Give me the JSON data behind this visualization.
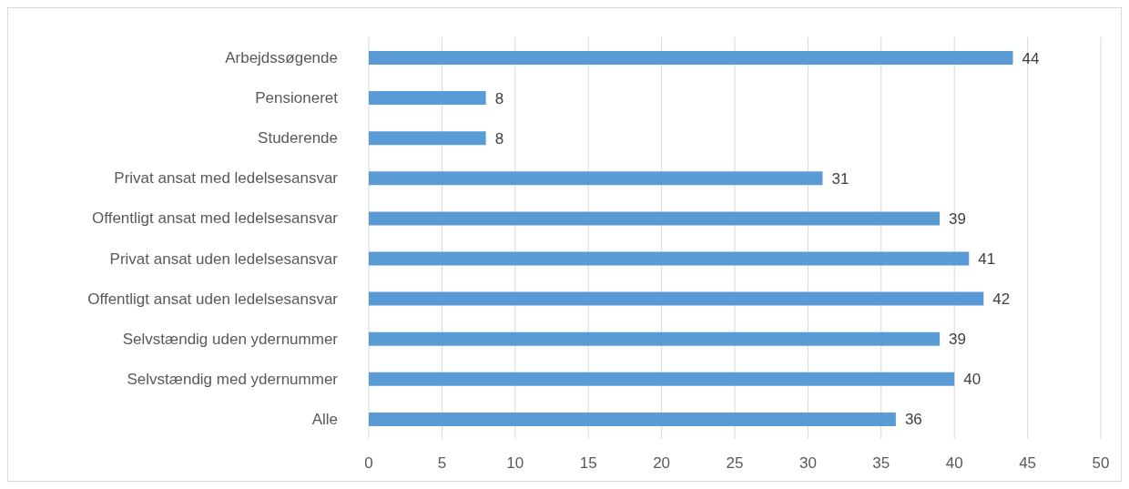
{
  "chart_data": {
    "type": "bar",
    "orientation": "horizontal",
    "categories": [
      "Arbejdssøgende",
      "Pensioneret",
      "Studerende",
      "Privat ansat med ledelsesansvar",
      "Offentligt ansat med ledelsesansvar",
      "Privat ansat uden ledelsesansvar",
      "Offentligt ansat uden ledelsesansvar",
      "Selvstændig uden ydernummer",
      "Selvstændig med ydernummer",
      "Alle"
    ],
    "values": [
      44,
      8,
      8,
      31,
      39,
      41,
      42,
      39,
      40,
      36
    ],
    "color": "#5b9bd5",
    "xlim": [
      0,
      50
    ],
    "xticks": [
      0,
      5,
      10,
      15,
      20,
      25,
      30,
      35,
      40,
      45,
      50
    ],
    "grid": "x",
    "data_labels": true
  }
}
